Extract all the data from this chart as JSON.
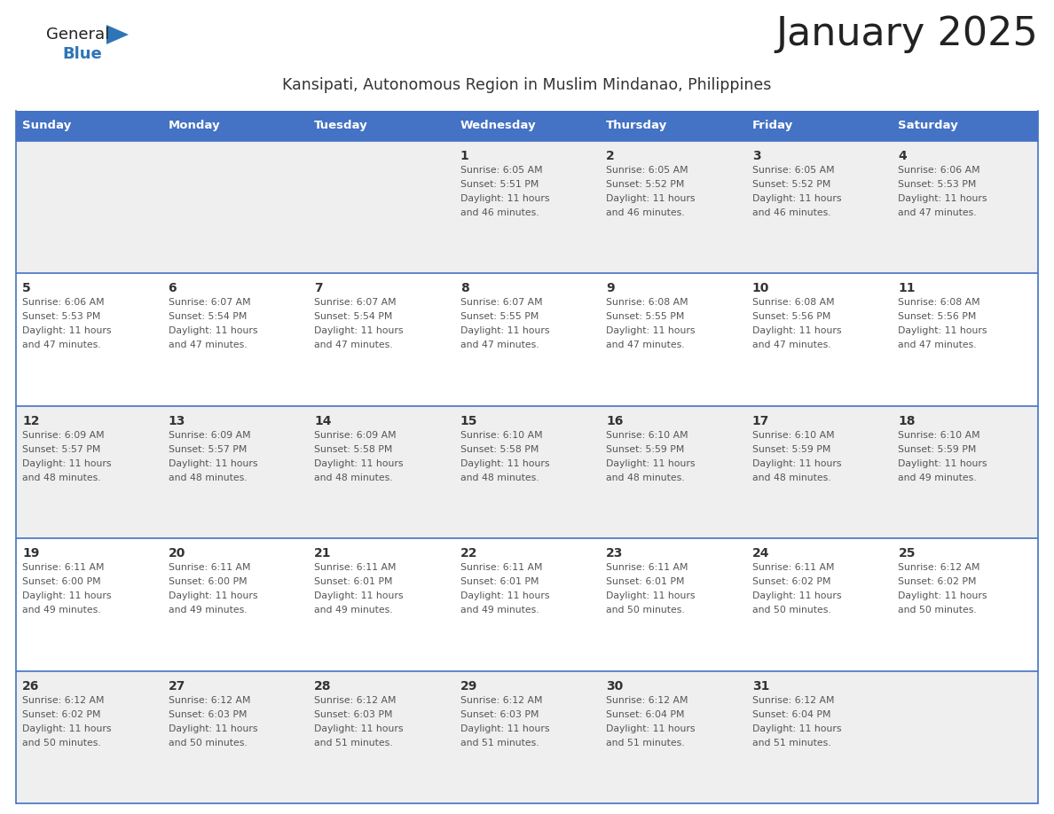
{
  "title": "January 2025",
  "subtitle": "Kansipati, Autonomous Region in Muslim Mindanao, Philippines",
  "days_of_week": [
    "Sunday",
    "Monday",
    "Tuesday",
    "Wednesday",
    "Thursday",
    "Friday",
    "Saturday"
  ],
  "header_bg_color": "#4472C4",
  "header_text_color": "#FFFFFF",
  "cell_bg_even": "#EFEFEF",
  "cell_bg_odd": "#FFFFFF",
  "cell_border_color": "#4472C4",
  "day_num_color": "#333333",
  "day_text_color": "#555555",
  "title_color": "#222222",
  "subtitle_color": "#333333",
  "logo_general_color": "#222222",
  "logo_blue_color": "#2E75B6",
  "calendar_data": [
    [
      null,
      null,
      null,
      {
        "day": 1,
        "sunrise": "6:05 AM",
        "sunset": "5:51 PM",
        "daylight_h": "11 hours",
        "daylight_m": "and 46 minutes."
      },
      {
        "day": 2,
        "sunrise": "6:05 AM",
        "sunset": "5:52 PM",
        "daylight_h": "11 hours",
        "daylight_m": "and 46 minutes."
      },
      {
        "day": 3,
        "sunrise": "6:05 AM",
        "sunset": "5:52 PM",
        "daylight_h": "11 hours",
        "daylight_m": "and 46 minutes."
      },
      {
        "day": 4,
        "sunrise": "6:06 AM",
        "sunset": "5:53 PM",
        "daylight_h": "11 hours",
        "daylight_m": "and 47 minutes."
      }
    ],
    [
      {
        "day": 5,
        "sunrise": "6:06 AM",
        "sunset": "5:53 PM",
        "daylight_h": "11 hours",
        "daylight_m": "and 47 minutes."
      },
      {
        "day": 6,
        "sunrise": "6:07 AM",
        "sunset": "5:54 PM",
        "daylight_h": "11 hours",
        "daylight_m": "and 47 minutes."
      },
      {
        "day": 7,
        "sunrise": "6:07 AM",
        "sunset": "5:54 PM",
        "daylight_h": "11 hours",
        "daylight_m": "and 47 minutes."
      },
      {
        "day": 8,
        "sunrise": "6:07 AM",
        "sunset": "5:55 PM",
        "daylight_h": "11 hours",
        "daylight_m": "and 47 minutes."
      },
      {
        "day": 9,
        "sunrise": "6:08 AM",
        "sunset": "5:55 PM",
        "daylight_h": "11 hours",
        "daylight_m": "and 47 minutes."
      },
      {
        "day": 10,
        "sunrise": "6:08 AM",
        "sunset": "5:56 PM",
        "daylight_h": "11 hours",
        "daylight_m": "and 47 minutes."
      },
      {
        "day": 11,
        "sunrise": "6:08 AM",
        "sunset": "5:56 PM",
        "daylight_h": "11 hours",
        "daylight_m": "and 47 minutes."
      }
    ],
    [
      {
        "day": 12,
        "sunrise": "6:09 AM",
        "sunset": "5:57 PM",
        "daylight_h": "11 hours",
        "daylight_m": "and 48 minutes."
      },
      {
        "day": 13,
        "sunrise": "6:09 AM",
        "sunset": "5:57 PM",
        "daylight_h": "11 hours",
        "daylight_m": "and 48 minutes."
      },
      {
        "day": 14,
        "sunrise": "6:09 AM",
        "sunset": "5:58 PM",
        "daylight_h": "11 hours",
        "daylight_m": "and 48 minutes."
      },
      {
        "day": 15,
        "sunrise": "6:10 AM",
        "sunset": "5:58 PM",
        "daylight_h": "11 hours",
        "daylight_m": "and 48 minutes."
      },
      {
        "day": 16,
        "sunrise": "6:10 AM",
        "sunset": "5:59 PM",
        "daylight_h": "11 hours",
        "daylight_m": "and 48 minutes."
      },
      {
        "day": 17,
        "sunrise": "6:10 AM",
        "sunset": "5:59 PM",
        "daylight_h": "11 hours",
        "daylight_m": "and 48 minutes."
      },
      {
        "day": 18,
        "sunrise": "6:10 AM",
        "sunset": "5:59 PM",
        "daylight_h": "11 hours",
        "daylight_m": "and 49 minutes."
      }
    ],
    [
      {
        "day": 19,
        "sunrise": "6:11 AM",
        "sunset": "6:00 PM",
        "daylight_h": "11 hours",
        "daylight_m": "and 49 minutes."
      },
      {
        "day": 20,
        "sunrise": "6:11 AM",
        "sunset": "6:00 PM",
        "daylight_h": "11 hours",
        "daylight_m": "and 49 minutes."
      },
      {
        "day": 21,
        "sunrise": "6:11 AM",
        "sunset": "6:01 PM",
        "daylight_h": "11 hours",
        "daylight_m": "and 49 minutes."
      },
      {
        "day": 22,
        "sunrise": "6:11 AM",
        "sunset": "6:01 PM",
        "daylight_h": "11 hours",
        "daylight_m": "and 49 minutes."
      },
      {
        "day": 23,
        "sunrise": "6:11 AM",
        "sunset": "6:01 PM",
        "daylight_h": "11 hours",
        "daylight_m": "and 50 minutes."
      },
      {
        "day": 24,
        "sunrise": "6:11 AM",
        "sunset": "6:02 PM",
        "daylight_h": "11 hours",
        "daylight_m": "and 50 minutes."
      },
      {
        "day": 25,
        "sunrise": "6:12 AM",
        "sunset": "6:02 PM",
        "daylight_h": "11 hours",
        "daylight_m": "and 50 minutes."
      }
    ],
    [
      {
        "day": 26,
        "sunrise": "6:12 AM",
        "sunset": "6:02 PM",
        "daylight_h": "11 hours",
        "daylight_m": "and 50 minutes."
      },
      {
        "day": 27,
        "sunrise": "6:12 AM",
        "sunset": "6:03 PM",
        "daylight_h": "11 hours",
        "daylight_m": "and 50 minutes."
      },
      {
        "day": 28,
        "sunrise": "6:12 AM",
        "sunset": "6:03 PM",
        "daylight_h": "11 hours",
        "daylight_m": "and 51 minutes."
      },
      {
        "day": 29,
        "sunrise": "6:12 AM",
        "sunset": "6:03 PM",
        "daylight_h": "11 hours",
        "daylight_m": "and 51 minutes."
      },
      {
        "day": 30,
        "sunrise": "6:12 AM",
        "sunset": "6:04 PM",
        "daylight_h": "11 hours",
        "daylight_m": "and 51 minutes."
      },
      {
        "day": 31,
        "sunrise": "6:12 AM",
        "sunset": "6:04 PM",
        "daylight_h": "11 hours",
        "daylight_m": "and 51 minutes."
      },
      null
    ]
  ],
  "fig_width": 11.88,
  "fig_height": 9.18,
  "dpi": 100
}
